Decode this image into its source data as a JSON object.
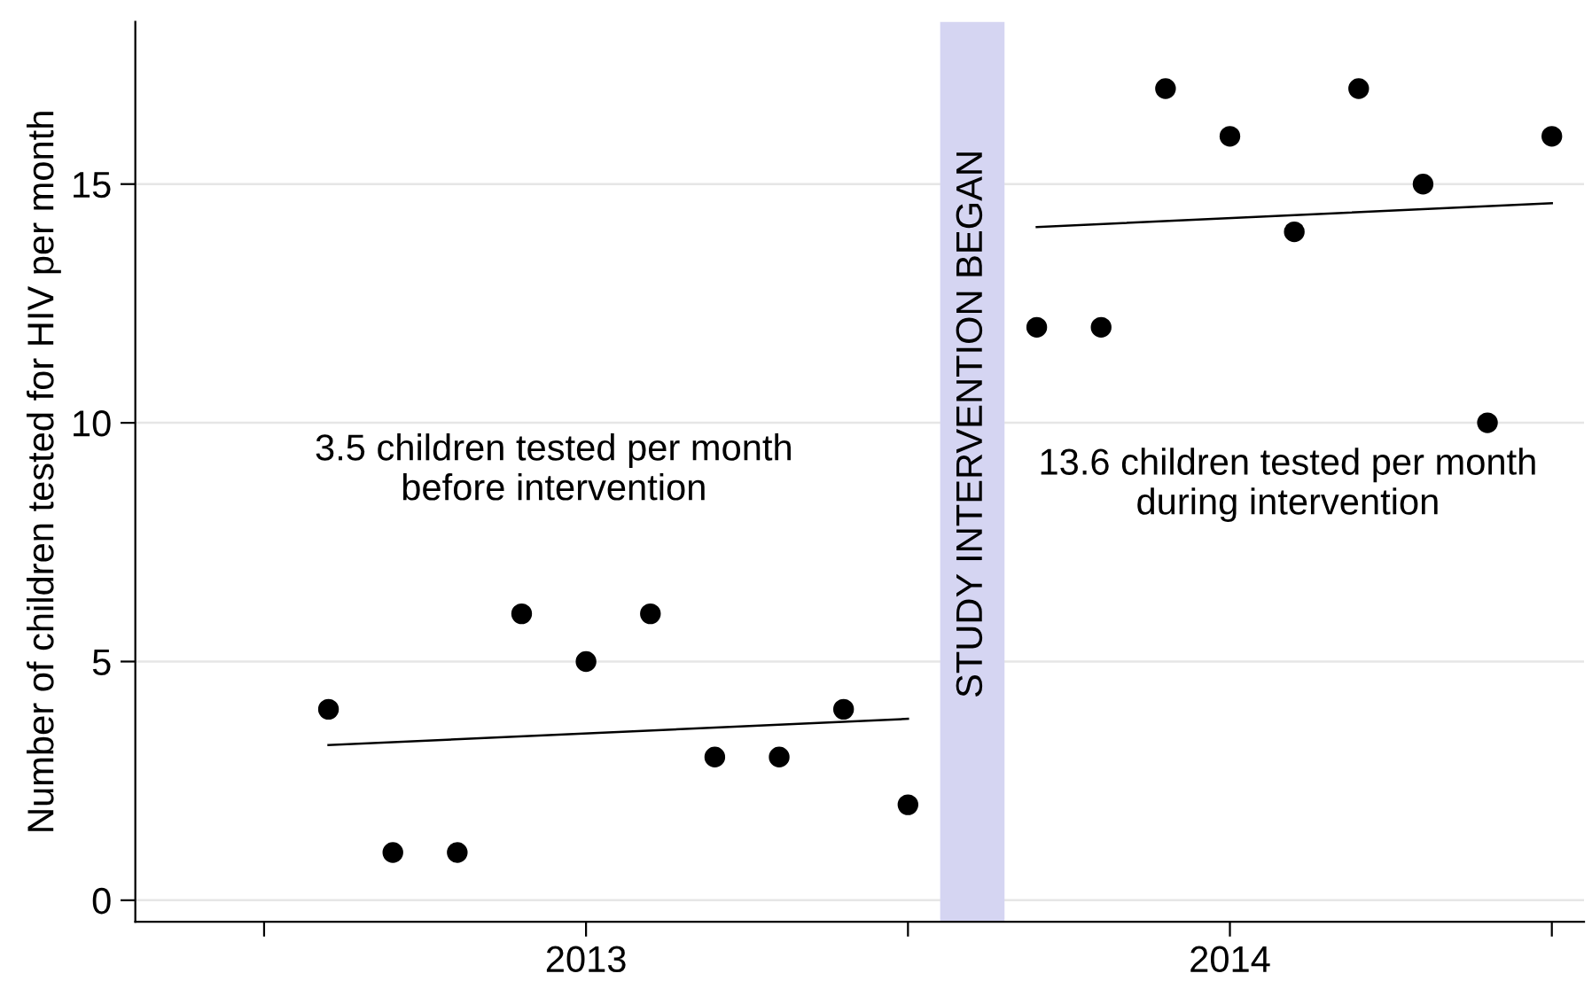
{
  "chart_data": {
    "type": "scatter",
    "ylabel": "Number of children tested for HIV per month",
    "categories": [
      null,
      null,
      null,
      null,
      null,
      "2013",
      null,
      null,
      null,
      null,
      null,
      null,
      null,
      null,
      null,
      "2014",
      null,
      null,
      null,
      null,
      null
    ],
    "series": [
      {
        "color": "#000000",
        "marker": "circle",
        "values": [
          null,
          4,
          1,
          1,
          6,
          5,
          6,
          3,
          3,
          4,
          2,
          null,
          12,
          12,
          17,
          16,
          14,
          17,
          15,
          10,
          16
        ]
      },
      {
        "type": "line",
        "color": "#000000",
        "values": [
          null,
          3.25,
          null,
          null,
          null,
          null,
          null,
          null,
          null,
          null,
          3.8,
          null,
          null,
          null,
          null,
          null,
          null,
          null,
          null,
          null,
          null
        ]
      },
      {
        "type": "line",
        "color": "#000000",
        "values": [
          null,
          null,
          null,
          null,
          null,
          null,
          null,
          null,
          null,
          null,
          null,
          null,
          14.1,
          null,
          null,
          null,
          null,
          null,
          null,
          null,
          14.6
        ]
      }
    ],
    "line_style": "solid",
    "ylim": [
      -0.45,
      18.4
    ],
    "yticks": [
      0,
      5,
      10,
      15
    ],
    "grid": "y",
    "annotations": [
      "3.5 children tested per month\nbefore intervention",
      "13.6 children tested per month\nduring intervention",
      "STUDY INTERVENTION BEGAN"
    ]
  }
}
